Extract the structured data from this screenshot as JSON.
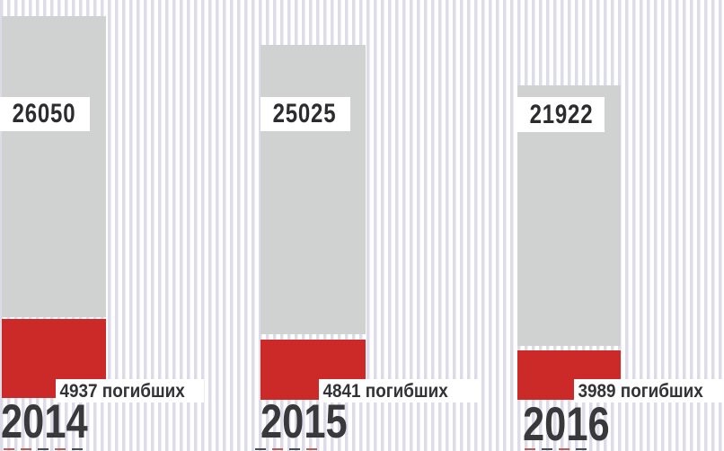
{
  "chart_data": {
    "type": "bar",
    "categories": [
      "2014",
      "2015",
      "2016"
    ],
    "series": [
      {
        "name": "gray_unlabeled_total",
        "values": [
          26050,
          25025,
          21922
        ],
        "color": "#d0d2d2"
      },
      {
        "name": "погибших",
        "values": [
          4937,
          4841,
          3989
        ],
        "color": "#cc2a28"
      }
    ],
    "title": "",
    "xlabel": "",
    "ylabel": "",
    "legend": "none",
    "axes": "none",
    "grid": false,
    "background": "white with light lavender vertical pinstripes",
    "value_labels": [
      "26050",
      "25025",
      "21922"
    ],
    "deaths_labels": [
      "4937 погибших",
      "4841 погибших",
      "3989 погибших"
    ]
  },
  "groups": [
    {
      "year": "2014",
      "total": "26050",
      "deaths": "4937 погибших"
    },
    {
      "year": "2015",
      "total": "25025",
      "deaths": "4841 погибших"
    },
    {
      "year": "2016",
      "total": "21922",
      "deaths": "3989 погибших"
    }
  ],
  "colors": {
    "bar_gray": "#d0d2d2",
    "bar_red": "#cc2a28",
    "text_dark": "#39393c",
    "stripe": "#dcdce9",
    "label_background": "#ffffff"
  }
}
